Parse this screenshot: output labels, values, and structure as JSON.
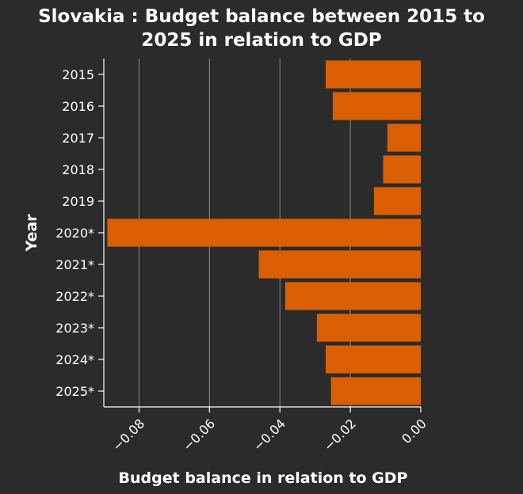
{
  "chart_data": {
    "type": "bar",
    "orientation": "horizontal",
    "title": "Slovakia : Budget balance between 2015 to 2025 in relation to GDP",
    "title_lines": [
      "Slovakia : Budget balance between 2015 to",
      "2025 in relation to GDP"
    ],
    "xlabel": "Budget balance in relation to GDP",
    "ylabel": "Year",
    "categories": [
      "2015",
      "2016",
      "2017",
      "2018",
      "2019",
      "2020*",
      "2021*",
      "2022*",
      "2023*",
      "2024*",
      "2025*"
    ],
    "values": [
      -0.027,
      -0.025,
      -0.0095,
      -0.0107,
      -0.0133,
      -0.089,
      -0.046,
      -0.0385,
      -0.0295,
      -0.027,
      -0.0255
    ],
    "xlim": [
      -0.09,
      0.0
    ],
    "xticks": [
      -0.08,
      -0.06,
      -0.04,
      -0.02,
      0.0
    ],
    "xtick_labels": [
      "−0.08",
      "−0.06",
      "−0.04",
      "−0.02",
      "0.00"
    ],
    "grid": "vertical lines at x ticks",
    "colors": {
      "background": "#2b2b2b",
      "bar": "#d95f02",
      "text": "#ffffff",
      "grid": "#8a8a8a"
    }
  }
}
